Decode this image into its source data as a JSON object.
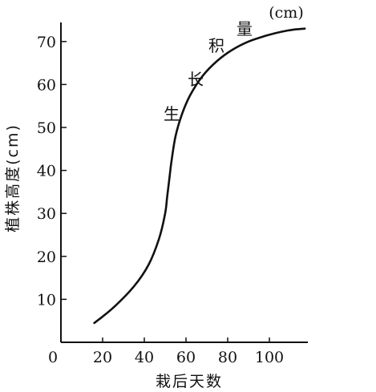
{
  "chart_data": {
    "type": "line",
    "xlabel": "栽后天数",
    "ylabel": "植株高度(cm)",
    "xlim": [
      0,
      120
    ],
    "ylim": [
      0,
      75
    ],
    "x_ticks": [
      0,
      20,
      40,
      60,
      80,
      100
    ],
    "y_ticks": [
      10,
      20,
      30,
      40,
      50,
      60,
      70
    ],
    "grid": false,
    "series": [
      {
        "name": "生长积量(cm)",
        "x": [
          16,
          25,
          35,
          42,
          47,
          50,
          51,
          52,
          53,
          55,
          58,
          62,
          68,
          75,
          82,
          90,
          98,
          106,
          112,
          117
        ],
        "y": [
          4.5,
          8.0,
          13.0,
          18.0,
          24.0,
          30.0,
          34.0,
          38.0,
          42.0,
          48.0,
          53.0,
          57.5,
          62.0,
          65.5,
          68.0,
          70.0,
          71.3,
          72.3,
          72.8,
          73.0
        ]
      }
    ],
    "annotation": {
      "chars": [
        "生",
        "长",
        "积",
        "量"
      ],
      "unit": "(cm)"
    }
  },
  "colors": {
    "line": "#111111",
    "axis": "#111111"
  }
}
